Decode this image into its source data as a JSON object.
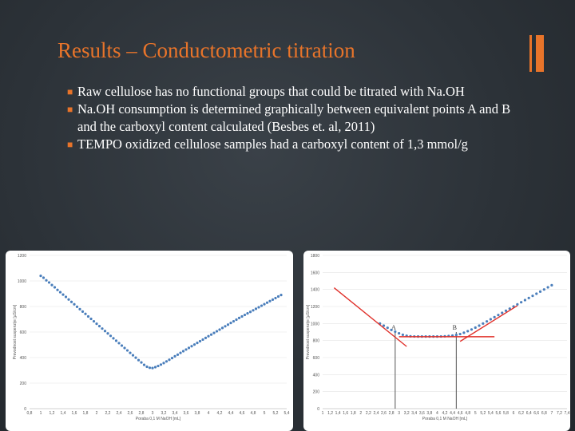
{
  "slide": {
    "title": "Results – Conductometric titration",
    "bullets": [
      "Raw cellulose has no functional groups that could be titrated with Na.OH",
      "Na.OH consumption is determined graphically between equivalent points A and B and the carboxyl content calculated (Besbes et. al, 2011)",
      "TEMPO oxidized cellulose samples had a carboxyl content of 1,3 mmol/g"
    ],
    "accent_color": "#e8742a"
  },
  "chart_data": [
    {
      "type": "scatter",
      "title": "",
      "xlabel": "Poraba 0,1 M NaOH [mL]",
      "ylabel": "Prevodnost suspenzije [μS/cm]",
      "xlim": [
        0.8,
        5.4
      ],
      "ylim": [
        0,
        1200
      ],
      "xticks": [
        "0,8",
        "1",
        "1,2",
        "1,4",
        "1,6",
        "1,8",
        "2",
        "2,2",
        "2,4",
        "2,6",
        "2,8",
        "3",
        "3,2",
        "3,4",
        "3,6",
        "3,8",
        "4",
        "4,2",
        "4,4",
        "4,6",
        "4,8",
        "5",
        "5,2",
        "5,4"
      ],
      "yticks": [
        "0",
        "200",
        "400",
        "600",
        "800",
        "1000",
        "1200"
      ],
      "marker_color": "#4a7ebb",
      "series": [
        {
          "values": [
            [
              1.0,
              1040
            ],
            [
              1.05,
              1025
            ],
            [
              1.1,
              1005
            ],
            [
              1.15,
              988
            ],
            [
              1.2,
              968
            ],
            [
              1.25,
              950
            ],
            [
              1.3,
              930
            ],
            [
              1.35,
              912
            ],
            [
              1.4,
              893
            ],
            [
              1.45,
              875
            ],
            [
              1.5,
              855
            ],
            [
              1.55,
              836
            ],
            [
              1.6,
              817
            ],
            [
              1.65,
              798
            ],
            [
              1.7,
              779
            ],
            [
              1.75,
              760
            ],
            [
              1.8,
              742
            ],
            [
              1.85,
              722
            ],
            [
              1.9,
              703
            ],
            [
              1.95,
              684
            ],
            [
              2.0,
              665
            ],
            [
              2.05,
              646
            ],
            [
              2.1,
              627
            ],
            [
              2.15,
              608
            ],
            [
              2.2,
              589
            ],
            [
              2.25,
              570
            ],
            [
              2.3,
              551
            ],
            [
              2.35,
              532
            ],
            [
              2.4,
              513
            ],
            [
              2.45,
              494
            ],
            [
              2.5,
              475
            ],
            [
              2.55,
              456
            ],
            [
              2.6,
              437
            ],
            [
              2.65,
              418
            ],
            [
              2.7,
              399
            ],
            [
              2.75,
              380
            ],
            [
              2.8,
              362
            ],
            [
              2.85,
              343
            ],
            [
              2.9,
              328
            ],
            [
              2.95,
              320
            ],
            [
              3.0,
              318
            ],
            [
              3.05,
              325
            ],
            [
              3.1,
              334
            ],
            [
              3.15,
              345
            ],
            [
              3.2,
              357
            ],
            [
              3.25,
              370
            ],
            [
              3.3,
              383
            ],
            [
              3.35,
              396
            ],
            [
              3.4,
              410
            ],
            [
              3.45,
              423
            ],
            [
              3.5,
              437
            ],
            [
              3.55,
              450
            ],
            [
              3.6,
              463
            ],
            [
              3.65,
              476
            ],
            [
              3.7,
              489
            ],
            [
              3.75,
              502
            ],
            [
              3.8,
              515
            ],
            [
              3.85,
              528
            ],
            [
              3.9,
              541
            ],
            [
              3.95,
              554
            ],
            [
              4.0,
              567
            ],
            [
              4.05,
              580
            ],
            [
              4.1,
              593
            ],
            [
              4.15,
              606
            ],
            [
              4.2,
              619
            ],
            [
              4.25,
              632
            ],
            [
              4.3,
              645
            ],
            [
              4.35,
              658
            ],
            [
              4.4,
              671
            ],
            [
              4.45,
              684
            ],
            [
              4.5,
              697
            ],
            [
              4.55,
              710
            ],
            [
              4.6,
              722
            ],
            [
              4.65,
              734
            ],
            [
              4.7,
              746
            ],
            [
              4.75,
              758
            ],
            [
              4.8,
              770
            ],
            [
              4.85,
              782
            ],
            [
              4.9,
              794
            ],
            [
              4.95,
              806
            ],
            [
              5.0,
              818
            ],
            [
              5.05,
              830
            ],
            [
              5.1,
              842
            ],
            [
              5.15,
              854
            ],
            [
              5.2,
              866
            ],
            [
              5.25,
              878
            ],
            [
              5.3,
              890
            ]
          ]
        }
      ]
    },
    {
      "type": "scatter",
      "title": "",
      "xlabel": "Poraba 0,1 M NaOH [mL]",
      "ylabel": "Prevodnost suspenzije [μS/cm]",
      "xlim": [
        1,
        7.4
      ],
      "ylim": [
        0,
        1800
      ],
      "xticks": [
        "1",
        "1,2",
        "1,4",
        "1,6",
        "1,8",
        "2",
        "2,2",
        "2,4",
        "2,6",
        "2,8",
        "3",
        "3,2",
        "3,4",
        "3,6",
        "3,8",
        "4",
        "4,2",
        "4,4",
        "4,6",
        "4,8",
        "5",
        "5,2",
        "5,4",
        "5,6",
        "5,8",
        "6",
        "6,2",
        "6,4",
        "6,6",
        "6,8",
        "7",
        "7,2",
        "7,4"
      ],
      "yticks": [
        "0",
        "200",
        "400",
        "600",
        "800",
        "1000",
        "1200",
        "1400",
        "1600",
        "1800"
      ],
      "marker_color": "#4a7ebb",
      "fit_color": "#e0302a",
      "series": [
        {
          "values": [
            [
              2.5,
              1000
            ],
            [
              2.6,
              975
            ],
            [
              2.7,
              950
            ],
            [
              2.8,
              925
            ],
            [
              2.9,
              905
            ],
            [
              3.0,
              885
            ],
            [
              3.1,
              868
            ],
            [
              3.2,
              856
            ],
            [
              3.3,
              850
            ],
            [
              3.4,
              848
            ],
            [
              3.5,
              847
            ],
            [
              3.6,
              847
            ],
            [
              3.7,
              847
            ],
            [
              3.8,
              847
            ],
            [
              3.9,
              847
            ],
            [
              4.0,
              847
            ],
            [
              4.1,
              848
            ],
            [
              4.2,
              850
            ],
            [
              4.3,
              853
            ],
            [
              4.4,
              858
            ],
            [
              4.5,
              866
            ],
            [
              4.6,
              876
            ],
            [
              4.7,
              892
            ],
            [
              4.8,
              910
            ],
            [
              4.9,
              930
            ],
            [
              5.0,
              952
            ],
            [
              5.1,
              975
            ],
            [
              5.2,
              1000
            ],
            [
              5.3,
              1025
            ],
            [
              5.4,
              1050
            ],
            [
              5.5,
              1075
            ],
            [
              5.6,
              1100
            ],
            [
              5.7,
              1125
            ],
            [
              5.8,
              1150
            ],
            [
              5.9,
              1175
            ],
            [
              6.0,
              1200
            ],
            [
              6.1,
              1225
            ],
            [
              6.2,
              1250
            ],
            [
              6.3,
              1275
            ],
            [
              6.4,
              1300
            ],
            [
              6.5,
              1325
            ],
            [
              6.6,
              1350
            ],
            [
              6.7,
              1375
            ],
            [
              6.8,
              1400
            ],
            [
              6.9,
              1425
            ],
            [
              7.0,
              1450
            ]
          ]
        }
      ],
      "fit_lines": [
        [
          [
            1.3,
            1420
          ],
          [
            3.2,
            730
          ]
        ],
        [
          [
            3.0,
            845
          ],
          [
            5.5,
            845
          ]
        ],
        [
          [
            4.6,
            790
          ],
          [
            6.1,
            1210
          ]
        ]
      ],
      "equivalence_points": [
        {
          "label": "A",
          "x": 2.9
        },
        {
          "label": "B",
          "x": 4.5
        }
      ]
    }
  ]
}
